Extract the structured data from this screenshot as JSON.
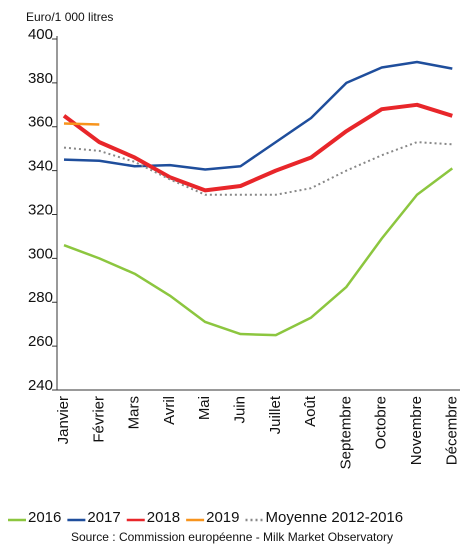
{
  "chart_data": {
    "type": "line",
    "unit_label": "Euro/1 000 litres",
    "source": "Source : Commission européenne - Milk Market Observatory",
    "categories": [
      "Janvier",
      "Février",
      "Mars",
      "Avril",
      "Mai",
      "Juin",
      "Juillet",
      "Août",
      "Septembre",
      "Octobre",
      "Novembre",
      "Décembre"
    ],
    "series": [
      {
        "name": "2016",
        "color": "#8cc63f",
        "dash": "solid",
        "values": [
          306,
          300,
          293,
          283,
          271,
          265.5,
          265,
          273,
          287,
          309,
          329,
          341
        ]
      },
      {
        "name": "2017",
        "color": "#1f4e9c",
        "dash": "solid",
        "values": [
          345,
          344.5,
          342,
          342.5,
          340.5,
          342,
          353,
          364,
          380,
          387,
          389.5,
          386.5
        ]
      },
      {
        "name": "2018",
        "color": "#e8262a",
        "dash": "solid",
        "values": [
          365,
          353,
          346,
          337,
          331,
          333,
          340,
          346,
          358,
          368,
          370,
          365
        ]
      },
      {
        "name": "2019",
        "color": "#f7941d",
        "dash": "solid",
        "values": [
          361.5,
          361,
          null,
          null,
          null,
          null,
          null,
          null,
          null,
          null,
          null,
          null
        ]
      },
      {
        "name": "Moyenne 2012-2016",
        "color": "#888888",
        "dash": "dotted",
        "values": [
          350.5,
          349,
          344,
          336,
          329,
          329,
          329,
          332,
          340,
          347,
          353,
          352
        ]
      }
    ],
    "ylim": [
      240,
      400
    ],
    "yticks": [
      240,
      260,
      280,
      300,
      320,
      340,
      360,
      380,
      400
    ],
    "grid": false
  }
}
